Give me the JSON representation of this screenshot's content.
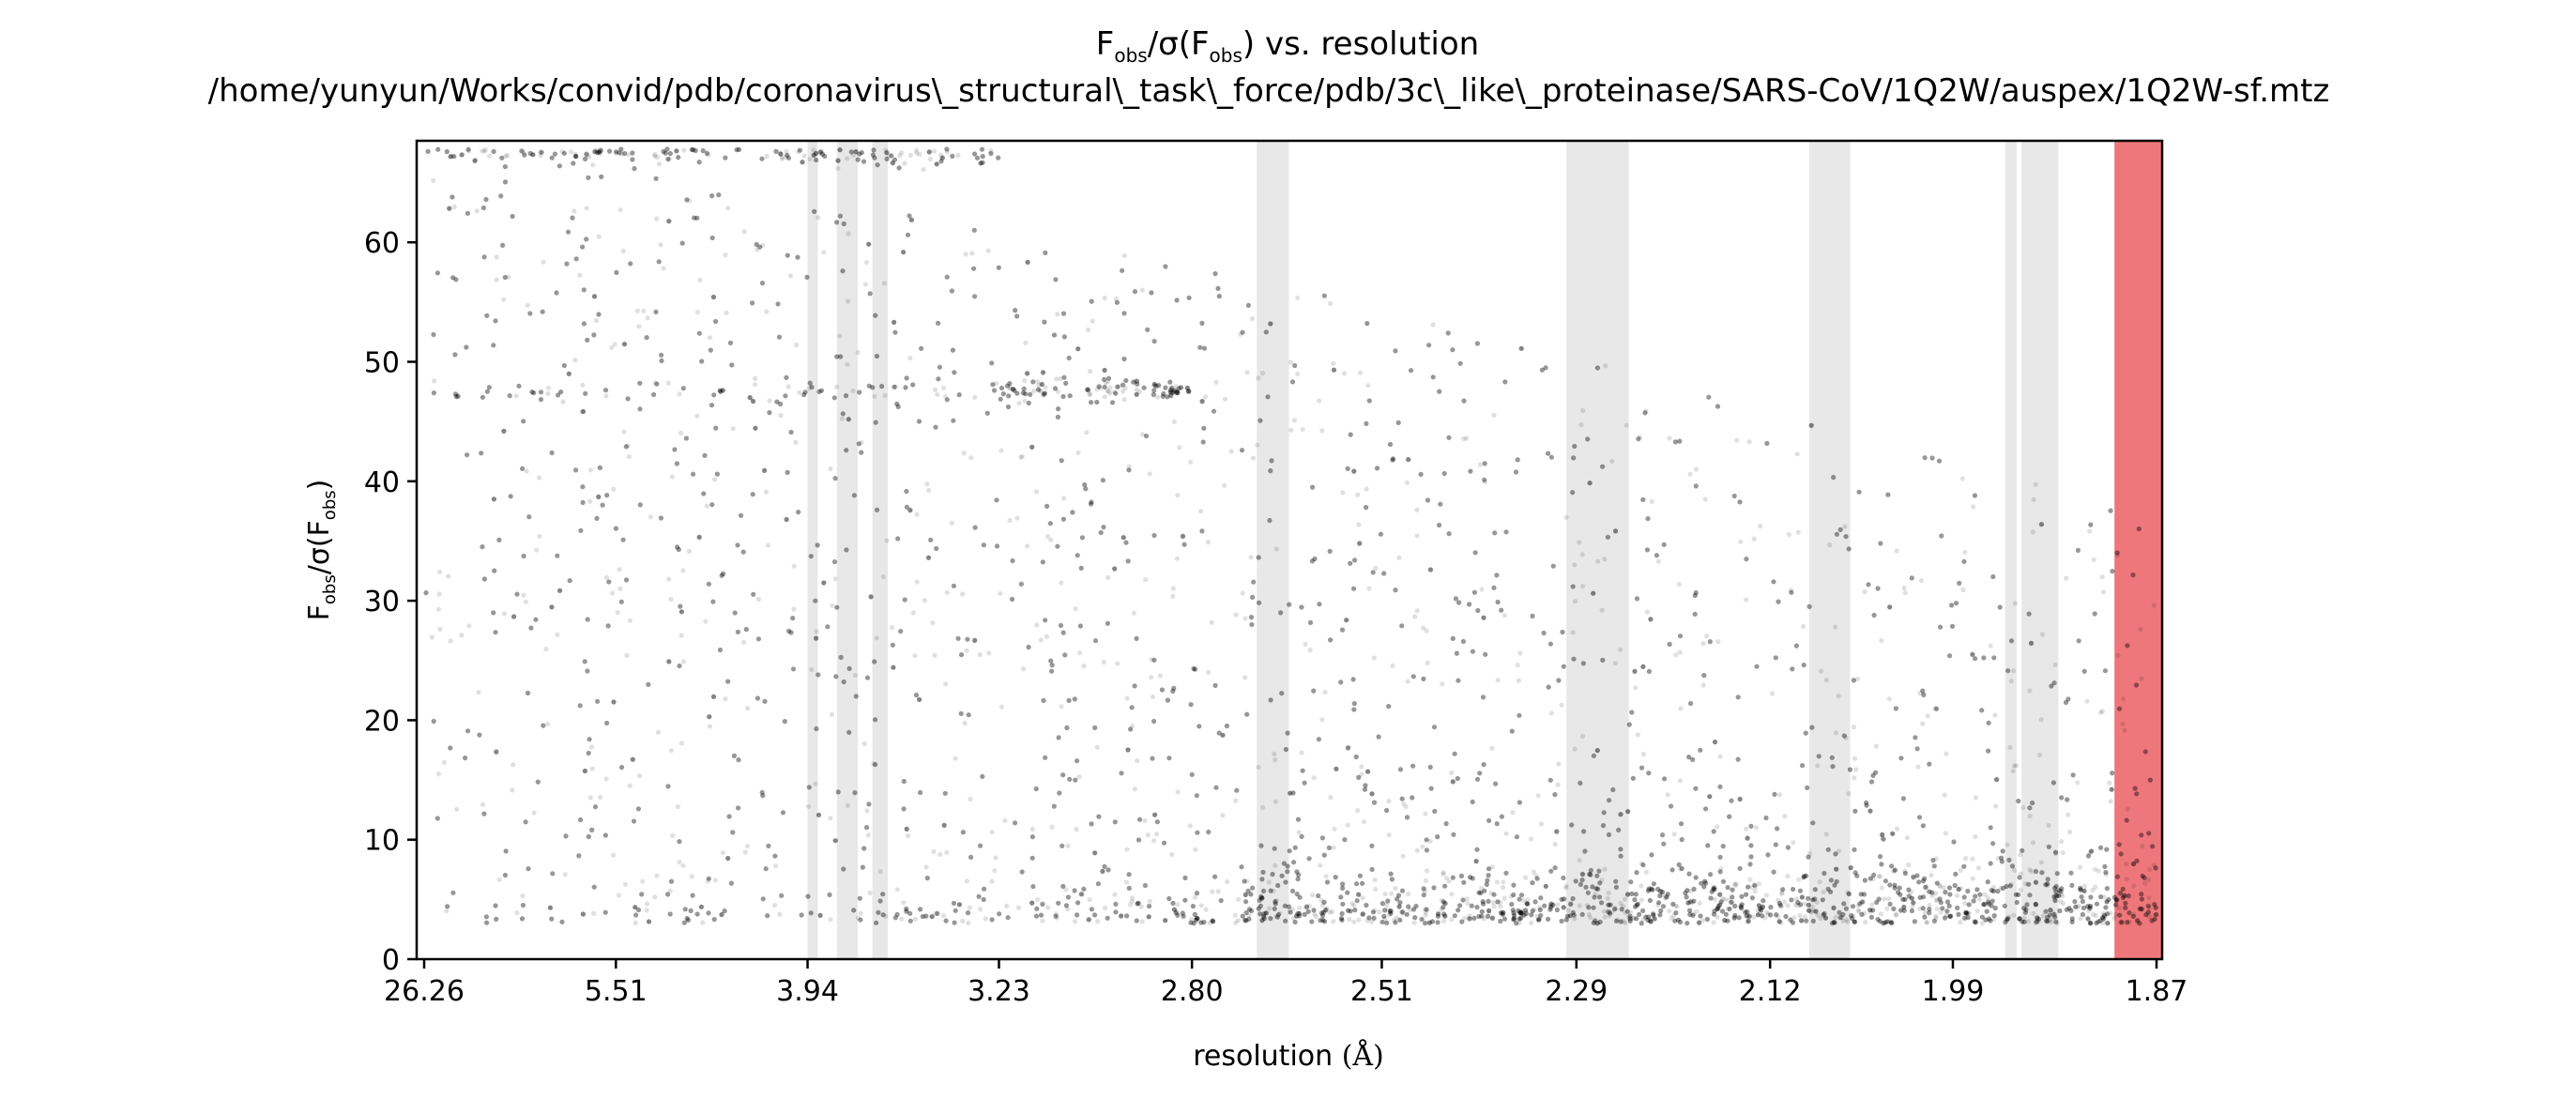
{
  "chart_data": {
    "type": "scatter",
    "title_line1_parts": [
      "F",
      "obs",
      "/σ(F",
      "obs",
      ") vs. resolution"
    ],
    "title_line2": "/home/yunyun/Works/convid/pdb/coronavirus\\_structural\\_task\\_force/pdb/3c\\_like\\_proteinase/SARS-CoV/1Q2W/auspex/1Q2W-sf.mtz",
    "xlabel_text": "resolution ",
    "xlabel_unit": "(Å)",
    "ylabel_parts": [
      "F",
      "obs",
      "/σ(F",
      "obs",
      ")"
    ],
    "x_axis_scale": "1/d² (resolution shown in Å)",
    "x_ticks": [
      "26.26",
      "5.51",
      "3.94",
      "3.23",
      "2.80",
      "2.51",
      "2.29",
      "2.12",
      "1.99",
      "1.87"
    ],
    "x_tick_resolutions": [
      26.26,
      5.51,
      3.94,
      3.23,
      2.8,
      2.51,
      2.29,
      2.12,
      1.99,
      1.87
    ],
    "y_ticks": [
      "0",
      "10",
      "20",
      "30",
      "40",
      "50",
      "60"
    ],
    "ylim": [
      0,
      68.5
    ],
    "xlim_resolution": [
      26.26,
      1.87
    ],
    "grid": false,
    "point_color": "#000000",
    "point_alpha": 0.12,
    "ice_ring_color": "#d8d8d8",
    "ice_ring_bands_resolution": [
      [
        3.94,
        3.89
      ],
      [
        3.8,
        3.71
      ],
      [
        3.65,
        3.59
      ],
      [
        2.69,
        2.64
      ],
      [
        2.3,
        2.24
      ],
      [
        2.09,
        2.06
      ],
      [
        1.957,
        1.95
      ],
      [
        1.947,
        1.925
      ]
    ],
    "high_res_cutoff_color": "#e84a4f",
    "high_res_cutoff_band_resolution": [
      1.893,
      1.87
    ],
    "data_features": {
      "upper_plateau_value": 67.8,
      "upper_plateau_resolution_range": [
        26.26,
        3.23
      ],
      "secondary_plateau_value": 47.6,
      "secondary_plateau_resolution_range": [
        26.26,
        2.8
      ],
      "low_value_floor": 3.0
    }
  }
}
